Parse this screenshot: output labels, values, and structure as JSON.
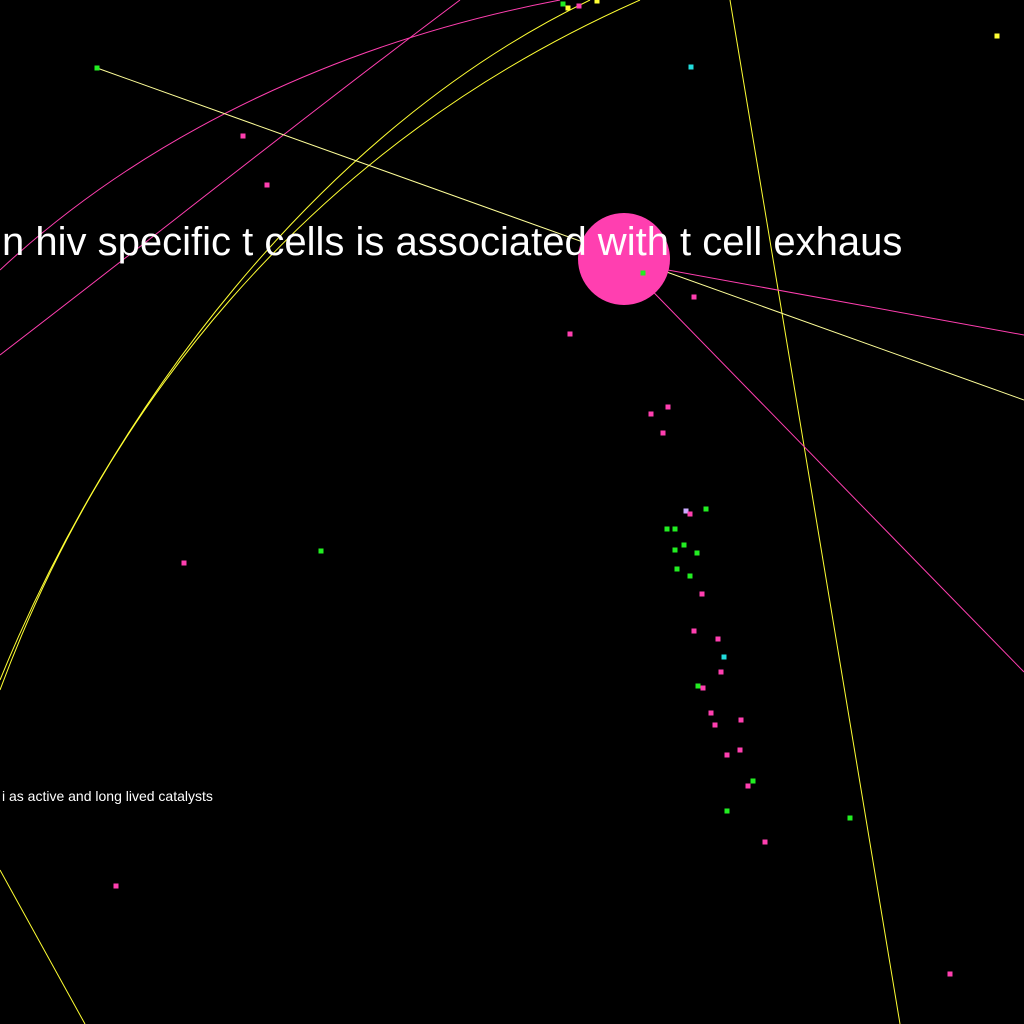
{
  "graph": {
    "colors": {
      "background": "#000000",
      "pink": "#ff3fb0",
      "green": "#22ee22",
      "yellow": "#ffff33",
      "cyan": "#22dddd",
      "lavender": "#ccaaff",
      "pale_yellow": "#ffff99",
      "label": "#ffffff"
    },
    "labels": {
      "focus_title": "n hiv specific t cells is associated with t cell exhaus",
      "secondary_title": "i as active and long lived catalysts"
    },
    "focus_node": {
      "name": "focus-node",
      "color": "pink"
    }
  }
}
